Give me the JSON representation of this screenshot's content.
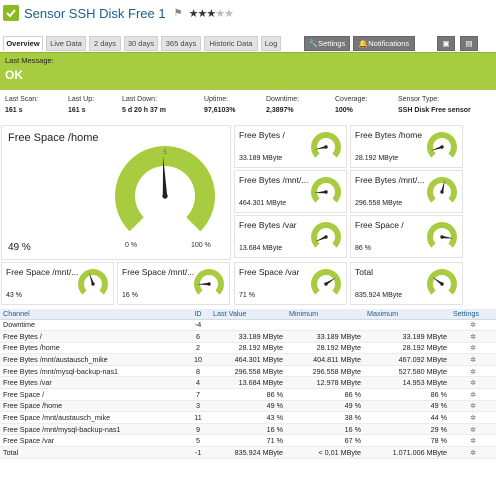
{
  "header": {
    "title": "Sensor SSH Disk Free 1",
    "priority_stars": 3,
    "priority_max": 5
  },
  "tabs": {
    "overview": "Overview",
    "live_data": "Live Data",
    "two_days": "2 days",
    "thirty_days": "30 days",
    "days365": "365 days",
    "historic": "Historic Data",
    "log": "Log",
    "settings": "Settings",
    "notifications": "Notifications"
  },
  "status": {
    "label": "Last Message:",
    "message": "OK",
    "color": "#a8cc3f"
  },
  "info": [
    {
      "key": "Last Scan:",
      "value": "161 s"
    },
    {
      "key": "Last Up:",
      "value": "161 s"
    },
    {
      "key": "Last Down:",
      "value": "5 d 20 h 37 m"
    },
    {
      "key": "Uptime:",
      "value": "97,6103%"
    },
    {
      "key": "Downtime:",
      "value": "2,3897%"
    },
    {
      "key": "Coverage:",
      "value": "100%"
    },
    {
      "key": "Sensor Type:",
      "value": "SSH Disk Free sensor"
    }
  ],
  "primary_gauge": {
    "title": "Free Space /home",
    "value": "49 %",
    "min_label": "0 %",
    "max_label": "100 %",
    "fraction": 0.49
  },
  "gauges": [
    {
      "title": "Free Bytes /",
      "value": "33.189 MByte",
      "fraction": 0.12
    },
    {
      "title": "Free Bytes /home",
      "value": "28.192 MByte",
      "fraction": 0.1
    },
    {
      "title": "Free Bytes /mnt/...",
      "value": "464.301 MByte",
      "fraction": 0.15
    },
    {
      "title": "Free Bytes /mnt/...",
      "value": "296.558 MByte",
      "fraction": 0.55
    },
    {
      "title": "Free Bytes /var",
      "value": "13.684 MByte",
      "fraction": 0.08
    },
    {
      "title": "Free Space /",
      "value": "86 %",
      "fraction": 0.86
    },
    {
      "title": "Free Space /mnt/...",
      "value": "43 %",
      "fraction": 0.43
    },
    {
      "title": "Free Space /mnt/...",
      "value": "16 %",
      "fraction": 0.16
    },
    {
      "title": "Free Space /var",
      "value": "71 %",
      "fraction": 0.71
    },
    {
      "title": "Total",
      "value": "835.924 MByte",
      "fraction": 0.3
    }
  ],
  "table": {
    "headers": [
      "Channel",
      "ID",
      "Last Value",
      "Minimum",
      "Maximum",
      "Settings"
    ],
    "rows": [
      {
        "channel": "Downtime",
        "id": "-4",
        "last": "",
        "min": "",
        "max": ""
      },
      {
        "channel": "Free Bytes /",
        "id": "6",
        "last": "33.189 MByte",
        "min": "33.189 MByte",
        "max": "33.189 MByte"
      },
      {
        "channel": "Free Bytes /home",
        "id": "2",
        "last": "28.192 MByte",
        "min": "28.192 MByte",
        "max": "28.192 MByte"
      },
      {
        "channel": "Free Bytes /mnt/austausch_mike",
        "id": "10",
        "last": "464.301 MByte",
        "min": "404.811 MByte",
        "max": "467.092 MByte"
      },
      {
        "channel": "Free Bytes /mnt/mysql-backup-nas1",
        "id": "8",
        "last": "296.558 MByte",
        "min": "296.558 MByte",
        "max": "527.580 MByte"
      },
      {
        "channel": "Free Bytes /var",
        "id": "4",
        "last": "13.684 MByte",
        "min": "12.978 MByte",
        "max": "14.953 MByte"
      },
      {
        "channel": "Free Space /",
        "id": "7",
        "last": "86 %",
        "min": "86 %",
        "max": "86 %"
      },
      {
        "channel": "Free Space /home",
        "id": "3",
        "last": "49 %",
        "min": "49 %",
        "max": "49 %"
      },
      {
        "channel": "Free Space /mnt/austausch_mike",
        "id": "11",
        "last": "43 %",
        "min": "38 %",
        "max": "44 %"
      },
      {
        "channel": "Free Space /mnt/mysql-backup-nas1",
        "id": "9",
        "last": "16 %",
        "min": "16 %",
        "max": "29 %"
      },
      {
        "channel": "Free Space /var",
        "id": "5",
        "last": "71 %",
        "min": "67 %",
        "max": "78 %"
      },
      {
        "channel": "Total",
        "id": "-1",
        "last": "835.924 MByte",
        "min": "< 0,01 MByte",
        "max": "1.071.006 MByte"
      }
    ]
  },
  "colors": {
    "accent": "#a8cc3f",
    "link": "#1b5e8f"
  }
}
